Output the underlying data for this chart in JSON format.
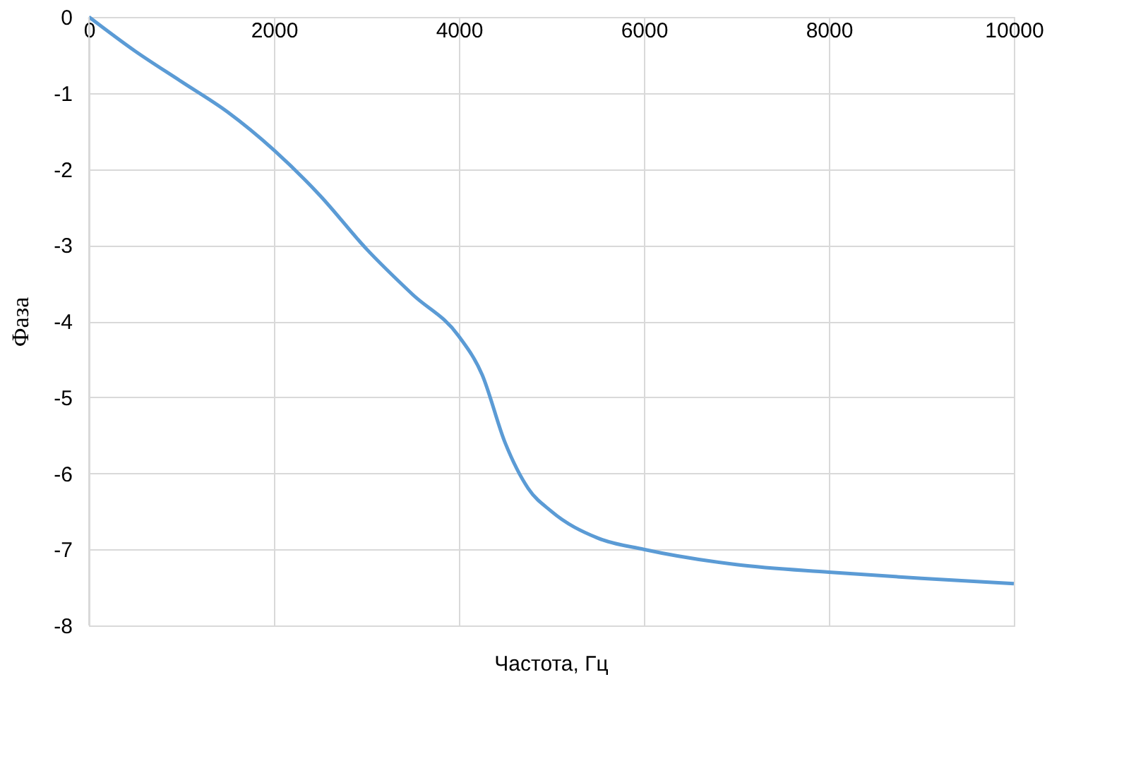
{
  "chart_data": {
    "type": "line",
    "xlabel": "Частота, Гц",
    "ylabel": "Фаза",
    "x": [
      0,
      500,
      1000,
      1500,
      2000,
      2500,
      3000,
      3500,
      4000,
      4250,
      4500,
      4750,
      5000,
      5500,
      6000,
      7000,
      8000,
      9000,
      10000
    ],
    "series": [
      {
        "color": "#5b9bd5",
        "values": [
          0,
          -0.45,
          -0.85,
          -1.25,
          -1.75,
          -2.35,
          -3.05,
          -3.65,
          -4.2,
          -4.7,
          -5.6,
          -6.2,
          -6.5,
          -6.85,
          -7.0,
          -7.2,
          -7.3,
          -7.38,
          -7.45
        ]
      }
    ],
    "xlim": [
      0,
      10000
    ],
    "xticks": [
      0,
      2000,
      4000,
      6000,
      8000,
      10000
    ],
    "ylim": [
      -8,
      0
    ],
    "yticks": [
      -8,
      -7,
      -6,
      -5,
      -4,
      -3,
      -2,
      -1,
      0
    ],
    "grid": true,
    "marker": "none",
    "line_style": "solid"
  }
}
